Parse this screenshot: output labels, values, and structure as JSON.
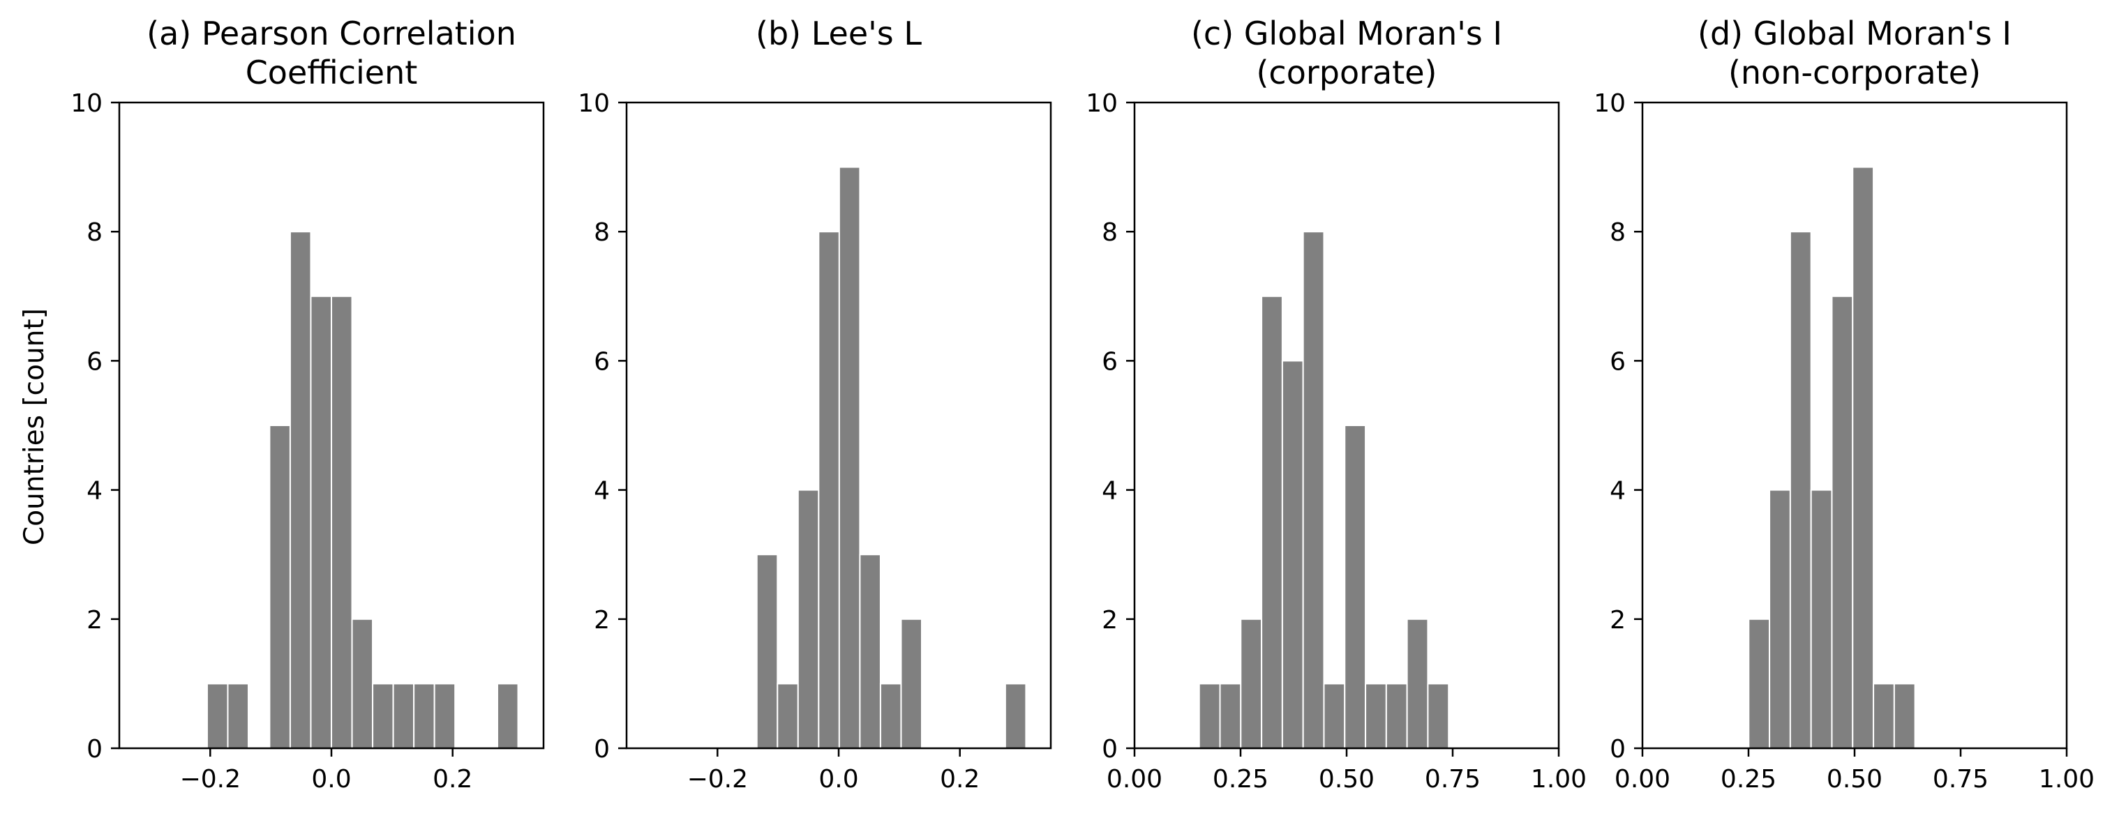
{
  "figure": {
    "ylabel": "Countries [count]"
  },
  "chart_data": [
    {
      "type": "bar",
      "title": [
        "(a) Pearson Correlation",
        "Coefficient"
      ],
      "xlim": [
        -0.35,
        0.35
      ],
      "ylim": [
        0,
        10
      ],
      "xticks": [
        -0.2,
        0.0,
        0.2
      ],
      "xtick_labels": [
        "−0.2",
        "0.0",
        "0.2"
      ],
      "yticks": [
        0,
        2,
        4,
        6,
        8,
        10
      ],
      "ytick_labels": [
        "0",
        "2",
        "4",
        "6",
        "8",
        "10"
      ],
      "bin_width": 0.034,
      "bars": [
        {
          "x": -0.188,
          "count": 1
        },
        {
          "x": -0.154,
          "count": 1
        },
        {
          "x": -0.085,
          "count": 5
        },
        {
          "x": -0.051,
          "count": 8
        },
        {
          "x": -0.017,
          "count": 7
        },
        {
          "x": 0.017,
          "count": 7
        },
        {
          "x": 0.051,
          "count": 2
        },
        {
          "x": 0.085,
          "count": 1
        },
        {
          "x": 0.119,
          "count": 1
        },
        {
          "x": 0.153,
          "count": 1
        },
        {
          "x": 0.187,
          "count": 1
        },
        {
          "x": 0.291,
          "count": 1
        }
      ]
    },
    {
      "type": "bar",
      "title": [
        "(b) Lee's L"
      ],
      "xlim": [
        -0.35,
        0.35
      ],
      "ylim": [
        0,
        10
      ],
      "xticks": [
        -0.2,
        0.0,
        0.2
      ],
      "xtick_labels": [
        "−0.2",
        "0.0",
        "0.2"
      ],
      "yticks": [
        0,
        2,
        4,
        6,
        8,
        10
      ],
      "ytick_labels": [
        "0",
        "2",
        "4",
        "6",
        "8",
        "10"
      ],
      "bin_width": 0.034,
      "bars": [
        {
          "x": -0.118,
          "count": 3
        },
        {
          "x": -0.084,
          "count": 1
        },
        {
          "x": -0.05,
          "count": 4
        },
        {
          "x": -0.016,
          "count": 8
        },
        {
          "x": 0.018,
          "count": 9
        },
        {
          "x": 0.052,
          "count": 3
        },
        {
          "x": 0.086,
          "count": 1
        },
        {
          "x": 0.12,
          "count": 2
        },
        {
          "x": 0.292,
          "count": 1
        }
      ]
    },
    {
      "type": "bar",
      "title": [
        "(c) Global Moran's I",
        "(corporate)"
      ],
      "xlim": [
        0.0,
        1.0
      ],
      "ylim": [
        0,
        10
      ],
      "xticks": [
        0.0,
        0.25,
        0.5,
        0.75,
        1.0
      ],
      "xtick_labels": [
        "0.00",
        "0.25",
        "0.50",
        "0.75",
        "1.00"
      ],
      "yticks": [
        0,
        2,
        4,
        6,
        8,
        10
      ],
      "ytick_labels": [
        "0",
        "2",
        "4",
        "6",
        "8",
        "10"
      ],
      "bin_width": 0.049,
      "bars": [
        {
          "x": 0.177,
          "count": 1
        },
        {
          "x": 0.226,
          "count": 1
        },
        {
          "x": 0.275,
          "count": 2
        },
        {
          "x": 0.324,
          "count": 7
        },
        {
          "x": 0.373,
          "count": 6
        },
        {
          "x": 0.422,
          "count": 8
        },
        {
          "x": 0.471,
          "count": 1
        },
        {
          "x": 0.52,
          "count": 5
        },
        {
          "x": 0.569,
          "count": 1
        },
        {
          "x": 0.618,
          "count": 1
        },
        {
          "x": 0.667,
          "count": 2
        },
        {
          "x": 0.716,
          "count": 1
        }
      ]
    },
    {
      "type": "bar",
      "title": [
        "(d) Global Moran's I",
        "(non-corporate)"
      ],
      "xlim": [
        0.0,
        1.0
      ],
      "ylim": [
        0,
        10
      ],
      "xticks": [
        0.0,
        0.25,
        0.5,
        0.75,
        1.0
      ],
      "xtick_labels": [
        "0.00",
        "0.25",
        "0.50",
        "0.75",
        "1.00"
      ],
      "yticks": [
        0,
        2,
        4,
        6,
        8,
        10
      ],
      "ytick_labels": [
        "0",
        "2",
        "4",
        "6",
        "8",
        "10"
      ],
      "bin_width": 0.049,
      "bars": [
        {
          "x": 0.275,
          "count": 2
        },
        {
          "x": 0.324,
          "count": 4
        },
        {
          "x": 0.373,
          "count": 8
        },
        {
          "x": 0.422,
          "count": 4
        },
        {
          "x": 0.471,
          "count": 7
        },
        {
          "x": 0.52,
          "count": 9
        },
        {
          "x": 0.569,
          "count": 1
        },
        {
          "x": 0.618,
          "count": 1
        }
      ]
    }
  ]
}
